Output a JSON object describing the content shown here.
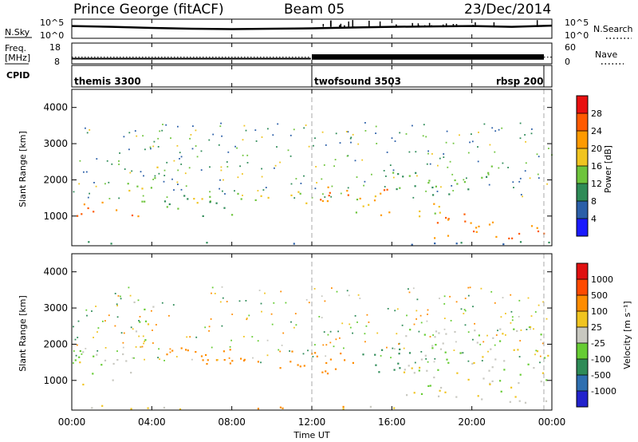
{
  "header": {
    "station": "Prince George (fitACF)",
    "beam": "Beam 05",
    "date": "23/Dec/2014"
  },
  "noise_panel": {
    "left_label": "N.Sky",
    "right_label": "N.Search",
    "y_top": "10^5",
    "y_bottom": "10^0",
    "y2_top": "10^5",
    "y2_bottom": "10^0"
  },
  "freq_panel": {
    "left_label_1": "Freq.",
    "left_label_2": "[MHz]",
    "right_label": "Nave",
    "y_top": "18",
    "y_bottom": "8",
    "y2_top": "60",
    "y2_bottom": "0"
  },
  "cpid": {
    "label": "CPID",
    "segments": [
      {
        "name": "themis 3300",
        "start_ut": 0.0,
        "end_ut": 12.0
      },
      {
        "name": "twofsound 3503",
        "start_ut": 12.0,
        "end_ut": 23.6
      },
      {
        "name": "rbsp 200",
        "start_ut": 23.6,
        "end_ut": 24.0
      }
    ]
  },
  "axes": {
    "ylabel": "Slant Range [km]",
    "xlabel": "Time UT",
    "x_ticks": [
      "00:00",
      "04:00",
      "08:00",
      "12:00",
      "16:00",
      "20:00",
      "00:00"
    ],
    "y_ticks": [
      "1000",
      "2000",
      "3000",
      "4000"
    ]
  },
  "power_colorbar": {
    "label": "Power [dB]",
    "ticks": [
      "4",
      "8",
      "12",
      "16",
      "20",
      "24",
      "28"
    ],
    "colors": [
      "#1a1aff",
      "#2b5fa8",
      "#2e8b57",
      "#6ec43c",
      "#f0c420",
      "#ff9a00",
      "#ff5a00",
      "#e81010"
    ]
  },
  "velocity_colorbar": {
    "label": "Velocity [m s⁻¹]",
    "ticks": [
      "1000",
      "500",
      "100",
      "25",
      "-25",
      "-100",
      "-500",
      "-1000"
    ],
    "colors": [
      "#2222cc",
      "#2e6fb0",
      "#2e8b57",
      "#66cc33",
      "#c8c8c0",
      "#f0c420",
      "#ff8c00",
      "#ff4a00",
      "#e01010"
    ]
  },
  "colors": {
    "scatter_blue": "#2a2ae0",
    "ground_gray": "#c6c6c0",
    "dashed": "#aaaaaa"
  },
  "chart_data": [
    {
      "type": "line",
      "name": "noise",
      "x_units": "hours UT",
      "x": [
        0,
        2,
        4,
        6,
        8,
        10,
        12,
        14,
        16,
        18,
        20,
        22,
        24
      ],
      "series": [
        {
          "name": "N.Sky",
          "values": [
            3.2,
            3.0,
            2.7,
            2.5,
            2.4,
            2.5,
            2.6,
            2.8,
            3.0,
            3.1,
            3.2,
            3.0,
            3.3
          ]
        }
      ],
      "ylim": [
        0,
        5
      ]
    },
    {
      "type": "line",
      "name": "frequency",
      "x": [
        0,
        6,
        11.9,
        12.0,
        18,
        24
      ],
      "series": [
        {
          "name": "Freq.",
          "values": [
            10.5,
            10.5,
            10.5,
            11.8,
            11.8,
            11.8
          ]
        }
      ],
      "ylim": [
        8,
        18
      ]
    },
    {
      "type": "heatmap",
      "name": "power",
      "xlim": [
        0,
        24
      ],
      "ylim": [
        180,
        4500
      ],
      "bands": [
        {
          "x0": 0.0,
          "x1": 2.3,
          "y0": 900,
          "y1": 1450,
          "value": 24
        },
        {
          "x0": 2.0,
          "x1": 3.9,
          "y0": 1400,
          "y1": 2000,
          "value": 16
        },
        {
          "x0": 2.5,
          "x1": 3.8,
          "y0": 850,
          "y1": 1100,
          "value": 22
        },
        {
          "x0": 3.8,
          "x1": 4.3,
          "y0": 1600,
          "y1": 2600,
          "value": 14
        },
        {
          "x0": 4.5,
          "x1": 8.0,
          "y0": 1000,
          "y1": 1600,
          "value": 12
        },
        {
          "x0": 6.0,
          "x1": 11.8,
          "y0": 1350,
          "y1": 1750,
          "value": 16
        },
        {
          "x0": 12.0,
          "x1": 16.5,
          "y0": 1400,
          "y1": 1900,
          "value": 22
        },
        {
          "x0": 14.0,
          "x1": 18.5,
          "y0": 1000,
          "y1": 1500,
          "value": 18
        },
        {
          "x0": 16.0,
          "x1": 21.0,
          "y0": 1600,
          "y1": 2400,
          "value": 12
        },
        {
          "x0": 18.0,
          "x1": 24.0,
          "y0": 400,
          "y1": 1100,
          "value": 24
        },
        {
          "x0": 0.0,
          "x1": 24.0,
          "y0": 180,
          "y1": 320,
          "value": 8
        }
      ]
    },
    {
      "type": "heatmap",
      "name": "velocity",
      "xlim": [
        0,
        24
      ],
      "ylim": [
        180,
        4500
      ],
      "bands": [
        {
          "x0": 0.0,
          "x1": 3.0,
          "y0": 900,
          "y1": 1900,
          "value": 0
        },
        {
          "x0": 3.0,
          "x1": 4.2,
          "y0": 1800,
          "y1": 3200,
          "value": 0
        },
        {
          "x0": 4.2,
          "x1": 12.0,
          "y0": 1350,
          "y1": 2000,
          "value": -200
        },
        {
          "x0": 12.0,
          "x1": 14.5,
          "y0": 1200,
          "y1": 2000,
          "value": -150
        },
        {
          "x0": 14.5,
          "x1": 17.0,
          "y0": 1200,
          "y1": 2000,
          "value": 300
        },
        {
          "x0": 16.5,
          "x1": 24.0,
          "y0": 400,
          "y1": 2500,
          "value": 0
        },
        {
          "x0": 0.0,
          "x1": 24.0,
          "y0": 180,
          "y1": 320,
          "value": -60
        }
      ]
    }
  ]
}
